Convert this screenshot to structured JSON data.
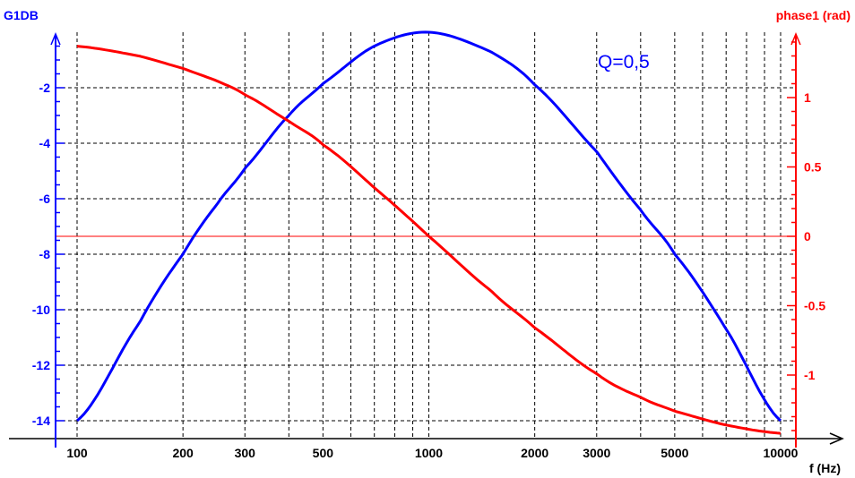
{
  "chart_data": {
    "type": "line",
    "title": "",
    "annotation": "Q=0,5",
    "xlabel": "f (Hz)",
    "xscale": "log",
    "xlim": [
      100,
      10000
    ],
    "x_ticks": [
      100,
      200,
      300,
      500,
      1000,
      2000,
      3000,
      5000,
      10000
    ],
    "x_tick_labels": [
      "100",
      "200",
      "300",
      "500",
      "1000",
      "2000",
      "3000",
      "5000",
      "10000"
    ],
    "y_left": {
      "label": "G1DB",
      "color": "#0000ff",
      "ylim": [
        -14,
        0
      ],
      "ticks": [
        -2,
        -4,
        -6,
        -8,
        -10,
        -12,
        -14
      ],
      "tick_labels": [
        "-2",
        "-4",
        "-6",
        "-8",
        "-10",
        "-12",
        "-14"
      ]
    },
    "y_right": {
      "label": "phase1 (rad)",
      "color": "#ff0000",
      "ylim": [
        -1.4,
        1.4
      ],
      "ticks": [
        1,
        0.5,
        0,
        -0.5,
        -1
      ],
      "tick_labels": [
        "1",
        "0.5",
        "0",
        "-0.5",
        "-1"
      ]
    },
    "grid": true,
    "series": [
      {
        "name": "G1DB",
        "axis": "left",
        "color": "#0000ff",
        "x": [
          100,
          150,
          200,
          250,
          300,
          400,
          500,
          700,
          1000,
          1500,
          2000,
          3000,
          4000,
          5000,
          7000,
          10000
        ],
        "values": [
          -14.0,
          -10.5,
          -8.0,
          -6.2,
          -4.9,
          -3.0,
          -1.85,
          -0.5,
          0.0,
          -0.7,
          -1.9,
          -4.3,
          -6.4,
          -8.0,
          -10.7,
          -14.0
        ]
      },
      {
        "name": "phase1",
        "axis": "right",
        "color": "#ff0000",
        "x": [
          100,
          150,
          200,
          250,
          300,
          400,
          500,
          700,
          1000,
          1500,
          2000,
          3000,
          4000,
          5000,
          7000,
          10000
        ],
        "values": [
          1.37,
          1.3,
          1.21,
          1.12,
          1.02,
          0.83,
          0.66,
          0.35,
          0.0,
          -0.39,
          -0.66,
          -0.99,
          -1.16,
          -1.26,
          -1.36,
          -1.42
        ]
      }
    ]
  }
}
